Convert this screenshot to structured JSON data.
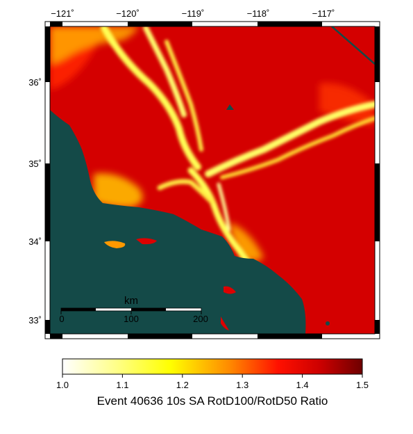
{
  "map": {
    "lon_ticks": [
      "−121˚",
      "−120˚",
      "−119˚",
      "−118˚",
      "−117˚"
    ],
    "lat_ticks": [
      "36˚",
      "35˚",
      "34˚",
      "33˚"
    ],
    "scale_bar": {
      "unit": "km",
      "labels": [
        "0",
        "100",
        "200"
      ]
    }
  },
  "colorbar": {
    "ticks": [
      "1.0",
      "1.1",
      "1.2",
      "1.3",
      "1.4",
      "1.5"
    ],
    "min": 1.0,
    "max": 1.5,
    "title": "Event 40636 10s SA RotD100/RotD50 Ratio",
    "stops": [
      "#ffffff",
      "#ffff66",
      "#ffff00",
      "#ff9900",
      "#ff0000",
      "#cc0000",
      "#7a0000"
    ]
  },
  "colors": {
    "ocean": "#144a48",
    "field_base": "#d40000"
  }
}
